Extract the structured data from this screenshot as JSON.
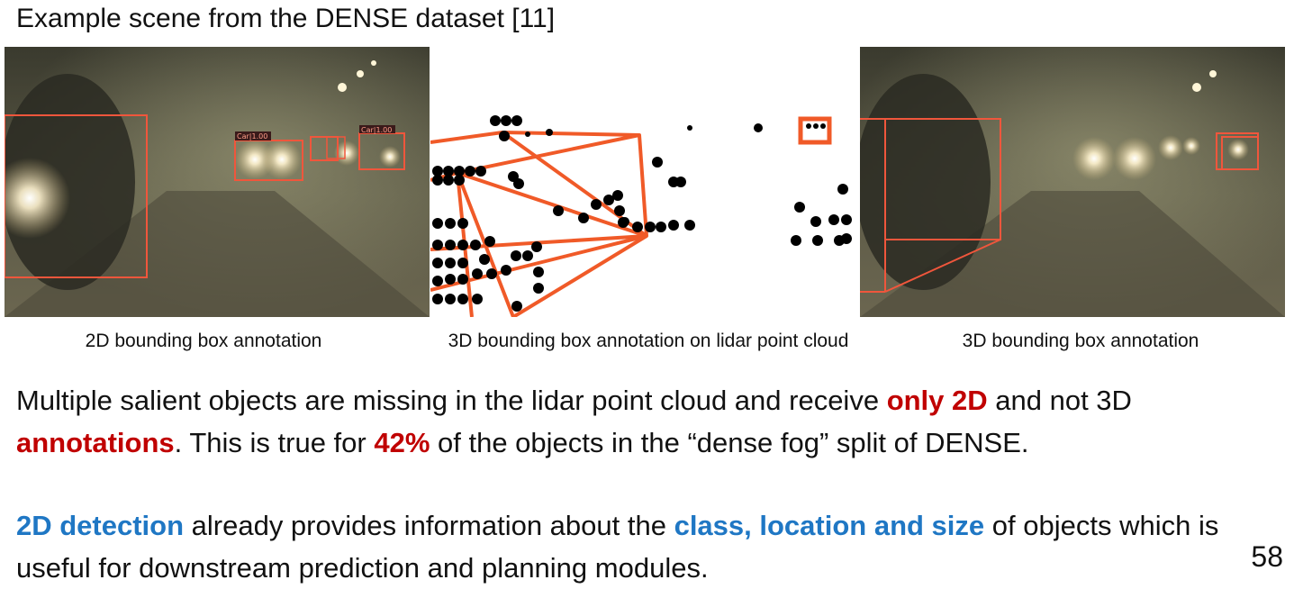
{
  "slide": {
    "title": "Example scene from the DENSE dataset [11]",
    "page_number": "58"
  },
  "panels": {
    "left": {
      "caption": "2D bounding box annotation",
      "box_label": "Car|1.00",
      "box_label_small": "Car|1.00"
    },
    "middle": {
      "caption": "3D bounding box annotation on lidar point cloud"
    },
    "right": {
      "caption": "3D bounding box annotation"
    }
  },
  "paragraph1": {
    "t1": "Multiple salient objects are missing in the lidar point cloud and receive ",
    "h1": "only 2D",
    "t2": " and not 3D ",
    "h2": "annotations",
    "t3": ". This is true for ",
    "h3": "42%",
    "t4": " of the objects in the “dense fog” split of DENSE."
  },
  "paragraph2": {
    "h1": "2D detection",
    "t1": " already provides information about the ",
    "h2": "class, location and size",
    "t2": " of objects which is useful for downstream prediction and planning modules."
  },
  "colors": {
    "highlight_red": "#c00000",
    "highlight_blue": "#1f77c4",
    "box_orange": "#f05a28"
  }
}
